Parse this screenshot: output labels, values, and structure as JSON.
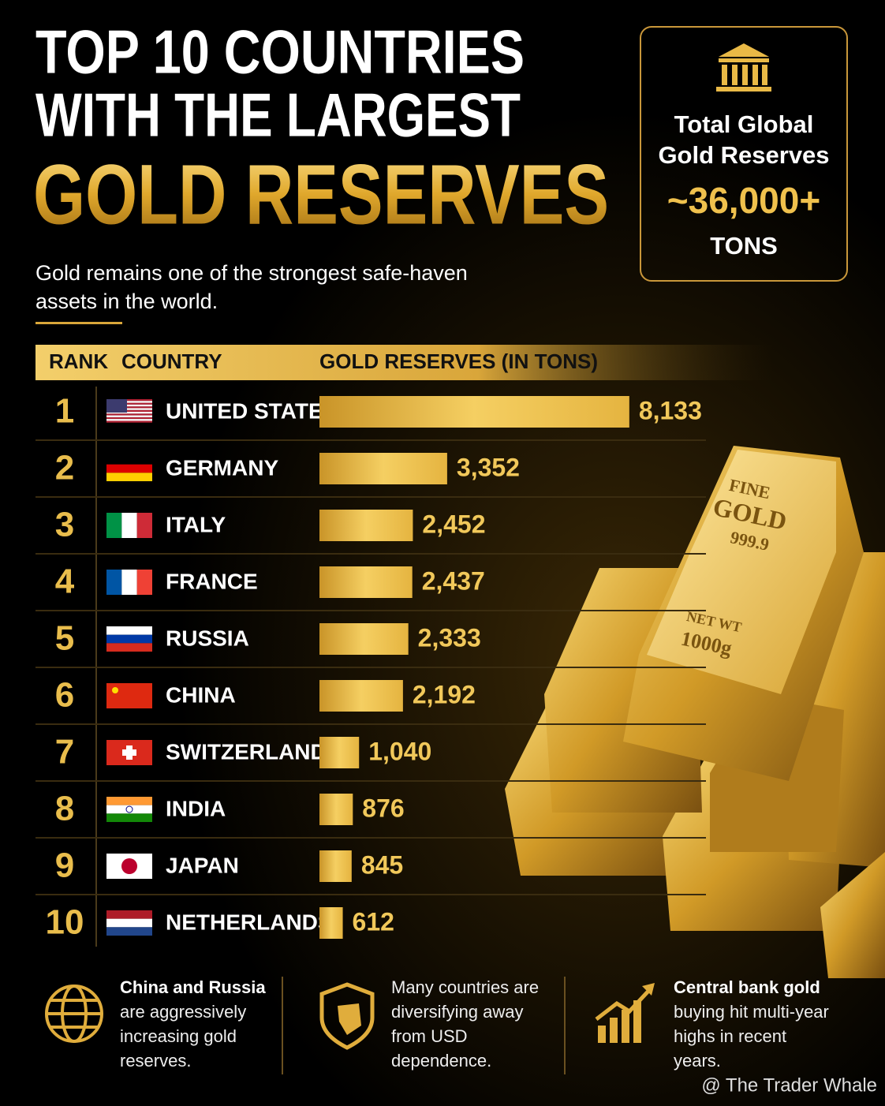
{
  "header": {
    "title_lines": [
      "TOP 10 COUNTRIES",
      "WITH THE LARGEST",
      "GOLD RESERVES"
    ],
    "subtitle_lines": [
      "Gold remains one of the strongest safe-haven",
      "assets in the world."
    ]
  },
  "stat_box": {
    "label_lines": [
      "Total Global",
      "Gold Reserves"
    ],
    "value": "~36,000+",
    "unit": "TONS"
  },
  "chart_data": {
    "type": "bar",
    "orientation": "horizontal",
    "columns": [
      "RANK",
      "COUNTRY",
      "GOLD RESERVES (IN TONS)"
    ],
    "ranks": [
      1,
      2,
      3,
      4,
      5,
      6,
      7,
      8,
      9,
      10
    ],
    "categories": [
      "UNITED STATES",
      "GERMANY",
      "ITALY",
      "FRANCE",
      "RUSSIA",
      "CHINA",
      "SWITZERLAND",
      "INDIA",
      "JAPAN",
      "NETHERLANDS"
    ],
    "values": [
      8133,
      3352,
      2452,
      2437,
      2333,
      2192,
      1040,
      876,
      845,
      612
    ],
    "value_labels": [
      "8,133",
      "3,352",
      "2,452",
      "2,437",
      "2,333",
      "2,192",
      "1,040",
      "876",
      "845",
      "612"
    ],
    "color": "#e8b53a"
  },
  "gold_bar": {
    "lines": [
      "FINE",
      "GOLD",
      "999.9",
      "NET WT",
      "1000g"
    ]
  },
  "footer": {
    "notes": [
      {
        "lines": [
          "China and Russia",
          "are aggressively",
          "increasing gold",
          "reserves."
        ]
      },
      {
        "lines": [
          "Many countries are",
          "diversifying away",
          "from USD",
          "dependence."
        ]
      },
      {
        "lines": [
          "Central bank gold",
          "buying hit multi-year",
          "highs in recent",
          "years."
        ]
      }
    ],
    "watermark": "@ The Trader Whale"
  }
}
